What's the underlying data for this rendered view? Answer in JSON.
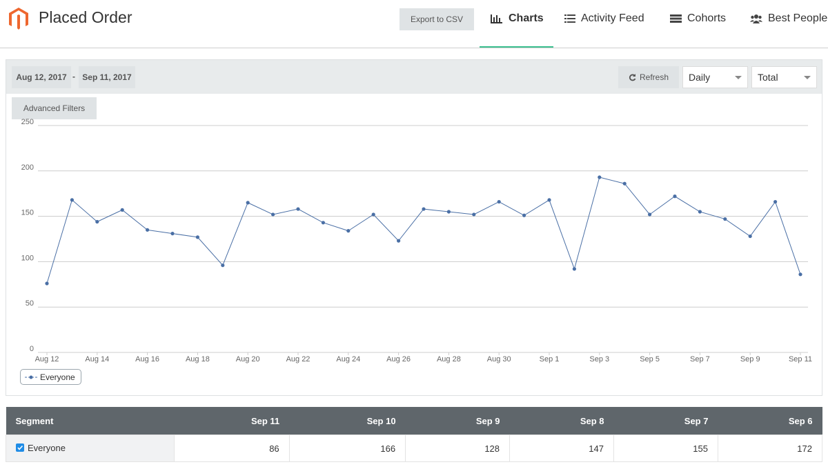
{
  "header": {
    "title": "Placed Order",
    "export_button": "Export to CSV",
    "tabs": [
      "Charts",
      "Activity Feed",
      "Cohorts",
      "Best People"
    ]
  },
  "toolbar": {
    "start_date": "Aug 12, 2017",
    "separator": "-",
    "end_date": "Sep 11, 2017",
    "refresh": "Refresh",
    "interval": "Daily",
    "metric": "Total",
    "filters": "Advanced Filters"
  },
  "chart_data": {
    "type": "line",
    "categories": [
      "Aug 12",
      null,
      "Aug 14",
      null,
      "Aug 16",
      null,
      "Aug 18",
      null,
      "Aug 20",
      null,
      "Aug 22",
      null,
      "Aug 24",
      null,
      "Aug 26",
      null,
      "Aug 28",
      null,
      "Aug 30",
      null,
      "Sep 1",
      null,
      "Sep 3",
      null,
      "Sep 5",
      null,
      "Sep 7",
      null,
      "Sep 9",
      null,
      "Sep 11"
    ],
    "series": [
      {
        "name": "Everyone",
        "color": "#4a6fa5",
        "values": [
          76,
          168,
          144,
          157,
          135,
          131,
          127,
          96,
          165,
          152,
          158,
          143,
          134,
          152,
          123,
          158,
          155,
          152,
          166,
          151,
          168,
          92,
          193,
          186,
          152,
          172,
          155,
          147,
          128,
          166,
          86
        ]
      }
    ],
    "ylim": [
      0,
      250
    ],
    "yticks": [
      0,
      50,
      100,
      150,
      200,
      250
    ],
    "grid": true
  },
  "table": {
    "columns": [
      "Segment",
      "Sep 11",
      "Sep 10",
      "Sep 9",
      "Sep 8",
      "Sep 7",
      "Sep 6"
    ],
    "rows": [
      [
        "Everyone",
        86,
        166,
        128,
        147,
        155,
        172
      ]
    ]
  }
}
